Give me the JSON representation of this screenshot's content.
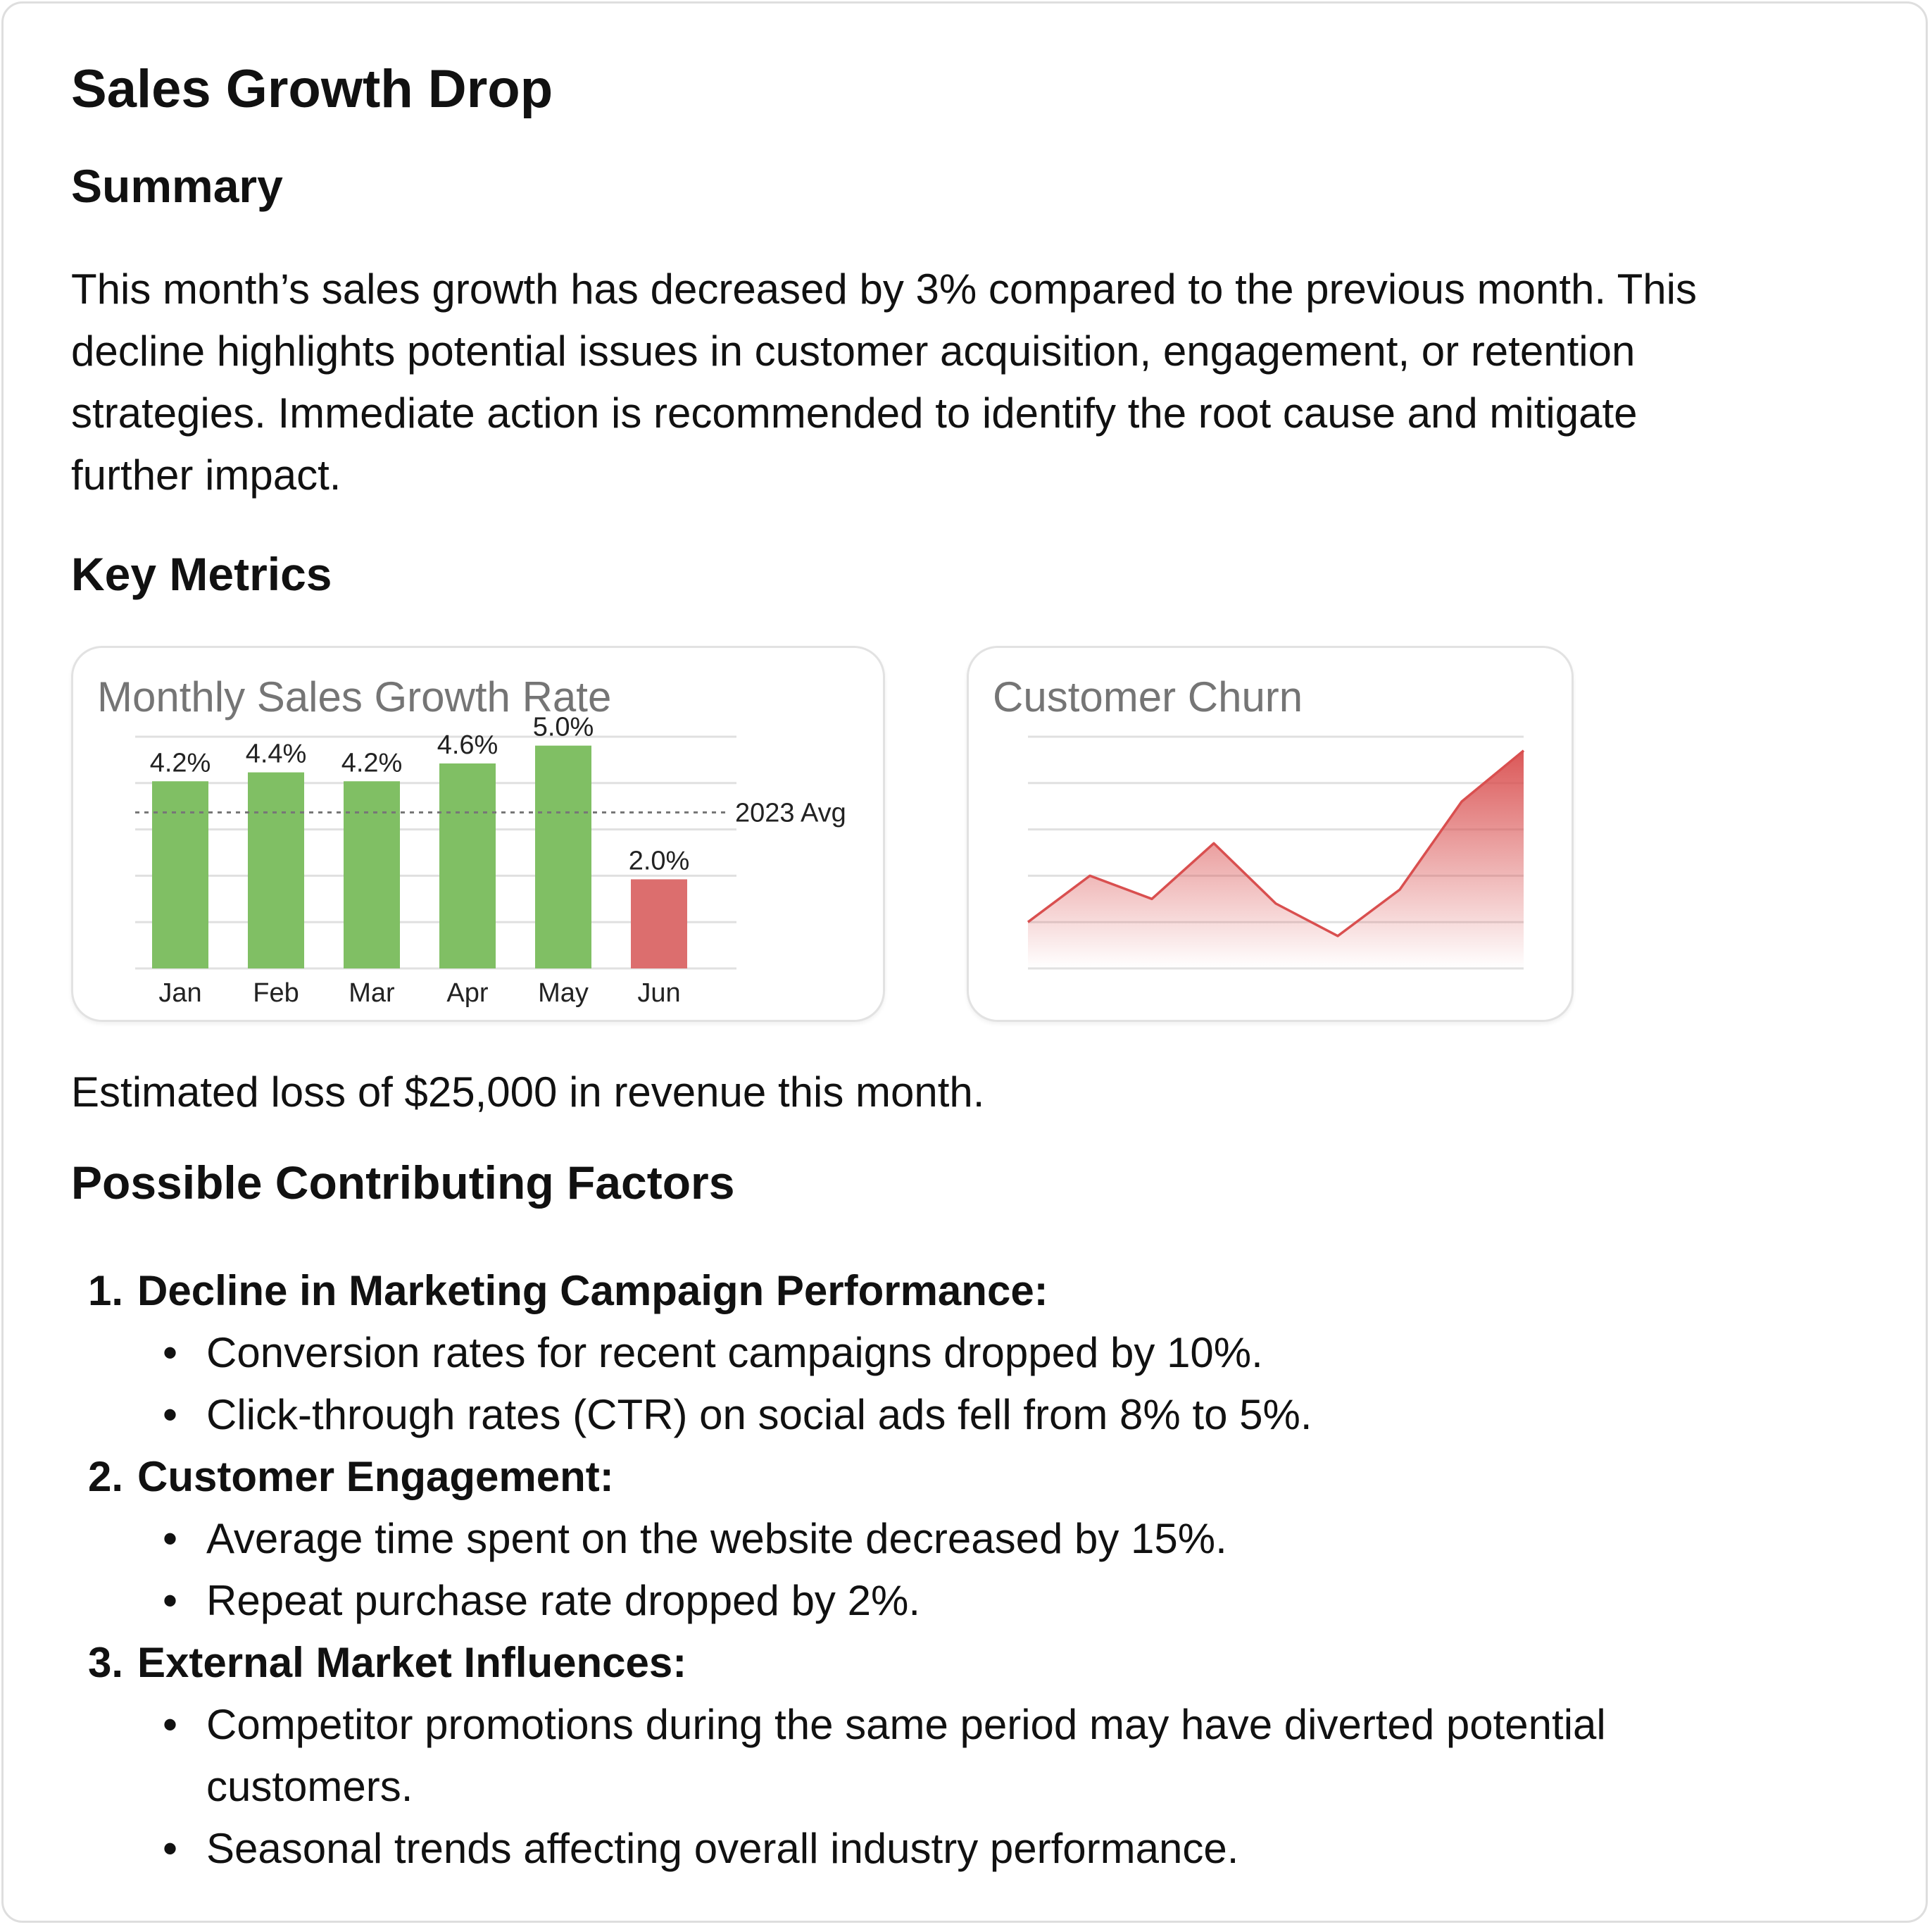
{
  "title": "Sales Growth Drop",
  "summary": {
    "heading": "Summary",
    "lines": [
      "This month’s sales growth has decreased by 3% compared to the previous month. This",
      "decline highlights potential issues in customer acquisition, engagement, or retention",
      "strategies. Immediate action is recommended to identify the root cause and mitigate",
      "further impact."
    ]
  },
  "key_metrics": {
    "heading": "Key Metrics"
  },
  "chart_data": [
    {
      "type": "bar",
      "title": "Monthly Sales Growth Rate",
      "categories": [
        "Jan",
        "Feb",
        "Mar",
        "Apr",
        "May",
        "Jun"
      ],
      "values": [
        4.2,
        4.4,
        4.2,
        4.6,
        5.0,
        2.0
      ],
      "data_labels": [
        "4.2%",
        "4.4%",
        "4.2%",
        "4.6%",
        "5.0%",
        "2.0%"
      ],
      "ylim": [
        0,
        5.2
      ],
      "reference_line": {
        "label": "2023 Avg",
        "value": 3.5
      },
      "grid": true,
      "colors": {
        "normal": "#80bf64",
        "highlight": "#dc6e6e"
      },
      "highlight_index": 5
    },
    {
      "type": "area",
      "title": "Customer Churn",
      "x": [
        0,
        1,
        2,
        3,
        4,
        5,
        6,
        7,
        8
      ],
      "values": [
        1.0,
        2.0,
        1.5,
        2.7,
        1.4,
        0.7,
        1.7,
        3.6,
        4.7
      ],
      "ylim": [
        0,
        5
      ],
      "grid": true,
      "colors": {
        "line": "#d94f4f",
        "fill": "#d94f4f"
      }
    }
  ],
  "loss_text": "Estimated loss of $25,000 in revenue this month.",
  "factors": {
    "heading": "Possible Contributing Factors",
    "items": [
      {
        "num": "1.",
        "title": "Decline in Marketing Campaign Performance:",
        "bullets": [
          "Conversion rates for recent campaigns dropped by 10%.",
          "Click-through rates (CTR) on social ads fell from 8% to 5%."
        ]
      },
      {
        "num": "2.",
        "title": "Customer Engagement:",
        "bullets": [
          "Average time spent on the website decreased by 15%.",
          "Repeat purchase rate dropped by 2%."
        ]
      },
      {
        "num": "3.",
        "title": "External Market Influences:",
        "bullets": [
          "Competitor promotions during the same period may have diverted potential",
          "customers.",
          "Seasonal trends affecting overall industry performance."
        ]
      }
    ]
  }
}
